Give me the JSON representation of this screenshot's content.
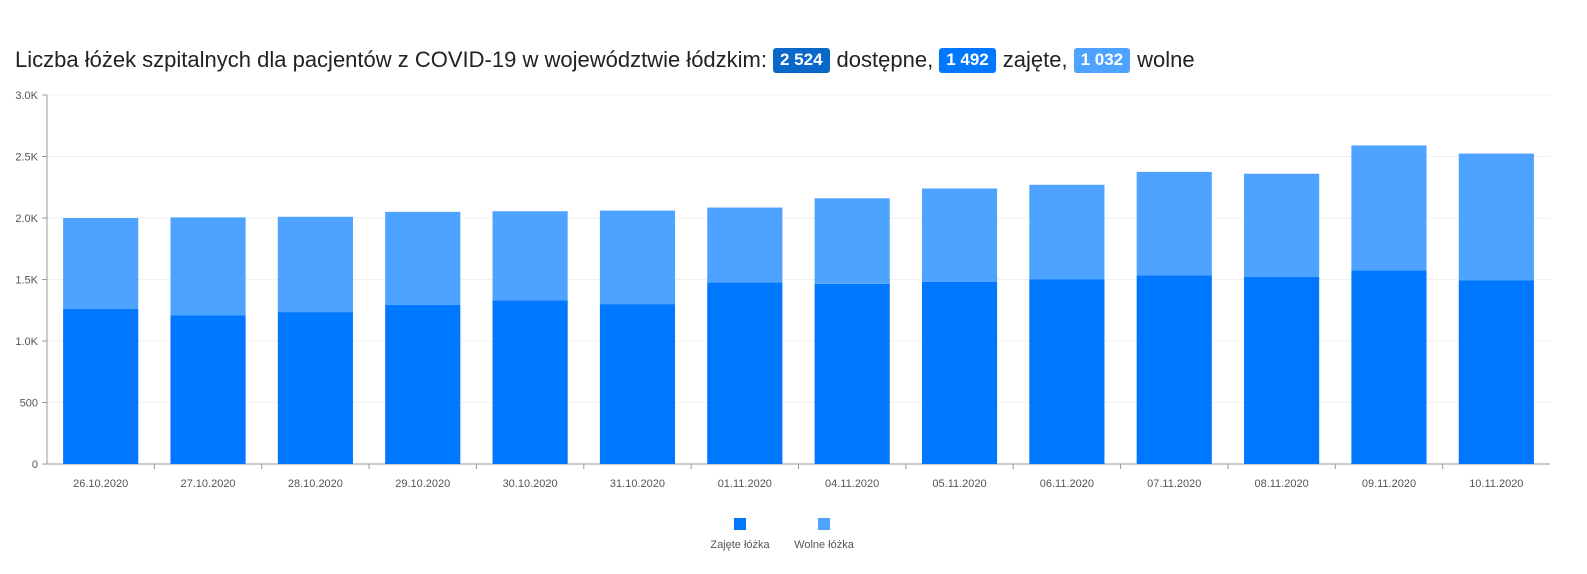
{
  "header": {
    "title_prefix": "Liczba łóżek szpitalnych dla pacjentów z COVID-19 w województwie łódzkim:",
    "available_value": "2 524",
    "available_label": "dostępne,",
    "occupied_value": "1 492",
    "occupied_label": "zajęte,",
    "free_value": "1 032",
    "free_label": "wolne"
  },
  "colors": {
    "occupied": "#0077ff",
    "free": "#4da3ff",
    "badge_available": "#0a68c9"
  },
  "chart_data": {
    "type": "bar",
    "stacked": true,
    "categories": [
      "26.10.2020",
      "27.10.2020",
      "28.10.2020",
      "29.10.2020",
      "30.10.2020",
      "31.10.2020",
      "01.11.2020",
      "04.11.2020",
      "05.11.2020",
      "06.11.2020",
      "07.11.2020",
      "08.11.2020",
      "09.11.2020",
      "10.11.2020"
    ],
    "series": [
      {
        "name": "Zajęte łóżka",
        "color": "#0077ff",
        "values": [
          1260,
          1210,
          1235,
          1295,
          1330,
          1300,
          1475,
          1465,
          1480,
          1500,
          1535,
          1520,
          1575,
          1492
        ]
      },
      {
        "name": "Wolne łóżka",
        "color": "#4da3ff",
        "values": [
          740,
          795,
          775,
          755,
          725,
          760,
          610,
          695,
          760,
          770,
          840,
          840,
          1015,
          1032
        ]
      }
    ],
    "yticks": [
      "0",
      "500",
      "1.0K",
      "1.5K",
      "2.0K",
      "2.5K",
      "3.0K"
    ],
    "ylim": [
      0,
      3000
    ],
    "grid": true,
    "legend_position": "bottom-center"
  }
}
